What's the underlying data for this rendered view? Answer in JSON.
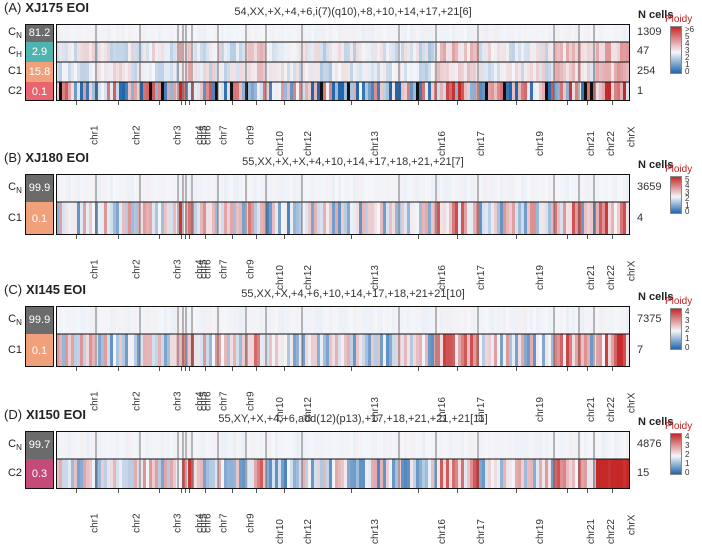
{
  "colors": {
    "low": "#2166ac",
    "neutral": "#f4f6fa",
    "high": "#c62828",
    "pct_high": "#6b6b6b",
    "pct_mid": "#f0a07a",
    "pct_low": "#e07f7a"
  },
  "chart_data": [
    {
      "type": "heatmap",
      "panel_label": "(A)",
      "title": "XJ175 EOI",
      "karyotype": "54,XX,+X,+4,+6,i(7)(q10),+8,+10,+14,+17,+21[6]",
      "ncells_header": "N cells",
      "legend_title": "Ploidy",
      "legend_ticks": [
        ">6",
        "5",
        "4",
        "3",
        "2",
        "1",
        "0"
      ],
      "legend_range": [
        0,
        6
      ],
      "chromosomes": [
        "chr1",
        "chr2",
        "chr3",
        "chr4",
        "chr5",
        "chr6",
        "chr7",
        "chr9",
        "chr10",
        "chr12",
        "chr13",
        "chr16",
        "chr17",
        "chr19",
        "chr21",
        "chr22",
        "chrX"
      ],
      "clusters": [
        {
          "name": "C",
          "sub": "N",
          "percent": "81.2",
          "ncells": "1309",
          "pattern": "flat"
        },
        {
          "name": "C",
          "sub": "H",
          "percent": "2.9",
          "ncells": "47",
          "pattern": "soft"
        },
        {
          "name": "C1",
          "sub": "",
          "percent": "15.8",
          "ncells": "254",
          "pattern": "soft"
        },
        {
          "name": "C2",
          "sub": "",
          "percent": "0.1",
          "ncells": "1",
          "pattern": "noisy"
        }
      ]
    },
    {
      "type": "heatmap",
      "panel_label": "(B)",
      "title": "XJ180 EOI",
      "karyotype": "55,XX,+X,+X,+4,+10,+14,+17,+18,+21,+21[7]",
      "ncells_header": "N cells",
      "legend_title": "Ploidy",
      "legend_ticks": [
        "5",
        "4",
        "3",
        "2",
        "1",
        "0"
      ],
      "legend_range": [
        0,
        5
      ],
      "chromosomes": [
        "chr1",
        "chr2",
        "chr3",
        "chr4",
        "chr5",
        "chr6",
        "chr7",
        "chr9",
        "chr10",
        "chr12",
        "chr13",
        "chr16",
        "chr17",
        "chr19",
        "chr21",
        "chr22",
        "chrX"
      ],
      "clusters": [
        {
          "name": "C",
          "sub": "N",
          "percent": "99.9",
          "ncells": "3659",
          "pattern": "flat"
        },
        {
          "name": "C1",
          "sub": "",
          "percent": "0.1",
          "ncells": "4",
          "pattern": "striped"
        }
      ]
    },
    {
      "type": "heatmap",
      "panel_label": "(C)",
      "title": "XI145 EOI",
      "karyotype": "55,XX,+X,+4,+6,+10,+14,+17,+18,+21+21[10]",
      "ncells_header": "N cells",
      "legend_title": "Ploidy",
      "legend_ticks": [
        "4",
        "3",
        "2",
        "1",
        "0"
      ],
      "legend_range": [
        0,
        4
      ],
      "chromosomes": [
        "chr1",
        "chr2",
        "chr3",
        "chr4",
        "chr5",
        "chr6",
        "chr7",
        "chr9",
        "chr10",
        "chr12",
        "chr13",
        "chr16",
        "chr17",
        "chr19",
        "chr21",
        "chr22",
        "chrX"
      ],
      "clusters": [
        {
          "name": "C",
          "sub": "N",
          "percent": "99.9",
          "ncells": "7375",
          "pattern": "flat"
        },
        {
          "name": "C1",
          "sub": "",
          "percent": "0.1",
          "ncells": "7",
          "pattern": "striped"
        }
      ]
    },
    {
      "type": "heatmap",
      "panel_label": "(D)",
      "title": "XI150 EOI",
      "karyotype": "55,XY,+X,+4,+6,add(12)(p13),+17,+18,+21,+21,+21[11]",
      "ncells_header": "N cells",
      "legend_title": "Ploidy",
      "legend_ticks": [
        "4",
        "3",
        "2",
        "1",
        "0"
      ],
      "legend_range": [
        0,
        4
      ],
      "chromosomes": [
        "chr1",
        "chr2",
        "chr3",
        "chr4",
        "chr5",
        "chr6",
        "chr7",
        "chr9",
        "chr10",
        "chr12",
        "chr13",
        "chr16",
        "chr17",
        "chr19",
        "chr21",
        "chr22",
        "chrX"
      ],
      "clusters": [
        {
          "name": "C",
          "sub": "N",
          "percent": "99.7",
          "ncells": "4876",
          "pattern": "flat"
        },
        {
          "name": "C2",
          "sub": "",
          "percent": "0.3",
          "ncells": "15",
          "pattern": "striped"
        }
      ]
    }
  ]
}
